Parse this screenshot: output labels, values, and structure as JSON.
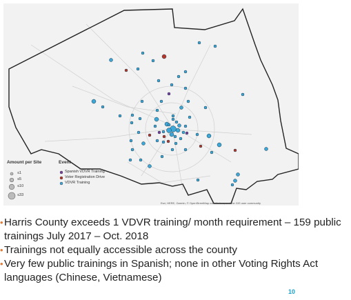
{
  "map": {
    "legend": {
      "amount_title": "Amount per Site",
      "amount_items": [
        "≤1",
        "≤5",
        "≤10",
        "≤33"
      ],
      "event_title": "Event",
      "events": [
        {
          "label": "Spanish VDVR Training",
          "color": "#7b3fa0"
        },
        {
          "label": "Voter Registration Drive",
          "color": "#b5382a"
        },
        {
          "label": "VDVR Training",
          "color": "#3da7d8"
        }
      ]
    },
    "credit": "Esri, HERE, Garmin, © OpenStreetMap contributors, and the GIS user community"
  },
  "bullets": [
    {
      "mark": "•",
      "text": "Harris County exceeds 1 VDVR training/ month requirement – 159 public trainings July 2017 – Oct. 2018"
    },
    {
      "mark": "•",
      "text": "Trainings not equally accessible across the county"
    },
    {
      "mark": "•",
      "text": "Very few public trainings in Spanish; none in other Voting Rights Act languages (Chinese, Vietnamese)"
    }
  ],
  "page_number": "10",
  "colors": {
    "accent": "#1aa3c8",
    "bullet": "#e07b39",
    "training": "#3da7d8",
    "drive": "#b5382a",
    "spanish": "#7b3fa0"
  }
}
